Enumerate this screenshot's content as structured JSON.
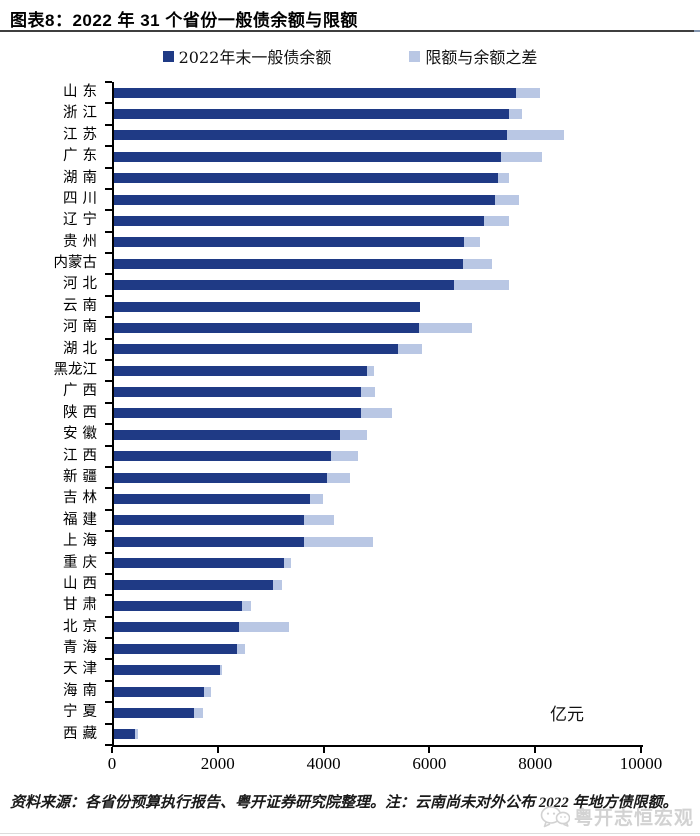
{
  "title": "图表8：2022 年 31 个省份一般债余额与限额",
  "legend": {
    "balance_label": "2022年末一般债余额",
    "diff_label": "限额与余额之差"
  },
  "colors": {
    "balance": "#1f3a85",
    "diff": "#b9c7e4",
    "axis": "#000000",
    "watermark": "#d2d2d2"
  },
  "chart_data": {
    "type": "bar",
    "orientation": "horizontal",
    "stacked": true,
    "title": "2022 年 31 个省份一般债余额与限额",
    "unit_label": "亿元",
    "xlim": [
      0,
      10000
    ],
    "xticks": [
      0,
      2000,
      4000,
      6000,
      8000,
      10000
    ],
    "grid": false,
    "legend_position": "top",
    "categories": [
      "山东",
      "浙江",
      "江苏",
      "广东",
      "湖南",
      "四川",
      "辽宁",
      "贵州",
      "内蒙古",
      "河北",
      "云南",
      "河南",
      "湖北",
      "黑龙江",
      "广西",
      "陕西",
      "安徽",
      "江西",
      "新疆",
      "吉林",
      "福建",
      "上海",
      "重庆",
      "山西",
      "甘肃",
      "北京",
      "青海",
      "天津",
      "海南",
      "宁夏",
      "西藏"
    ],
    "series": [
      {
        "name": "2022年末一般债余额",
        "color": "#1f3a85",
        "values": [
          7590,
          7470,
          7420,
          7320,
          7250,
          7210,
          7000,
          6620,
          6600,
          6430,
          5790,
          5770,
          5370,
          4790,
          4670,
          4660,
          4280,
          4100,
          4020,
          3700,
          3600,
          3590,
          3220,
          3010,
          2420,
          2370,
          2330,
          2010,
          1700,
          1510,
          390
        ]
      },
      {
        "name": "限额与余额之差",
        "color": "#b9c7e4",
        "values": [
          470,
          250,
          1080,
          780,
          210,
          450,
          470,
          300,
          550,
          1040,
          0,
          1000,
          460,
          130,
          270,
          590,
          510,
          520,
          450,
          250,
          550,
          1310,
          130,
          170,
          170,
          940,
          150,
          40,
          140,
          170,
          60
        ]
      }
    ],
    "note": "云南无限额数据（无浅色段）"
  },
  "source_note": "资料来源：各省份预算执行报告、粤开证券研究院整理。注：云南尚未对外公布 2022 年地方债限额。",
  "watermark": "粤开志恒宏观"
}
